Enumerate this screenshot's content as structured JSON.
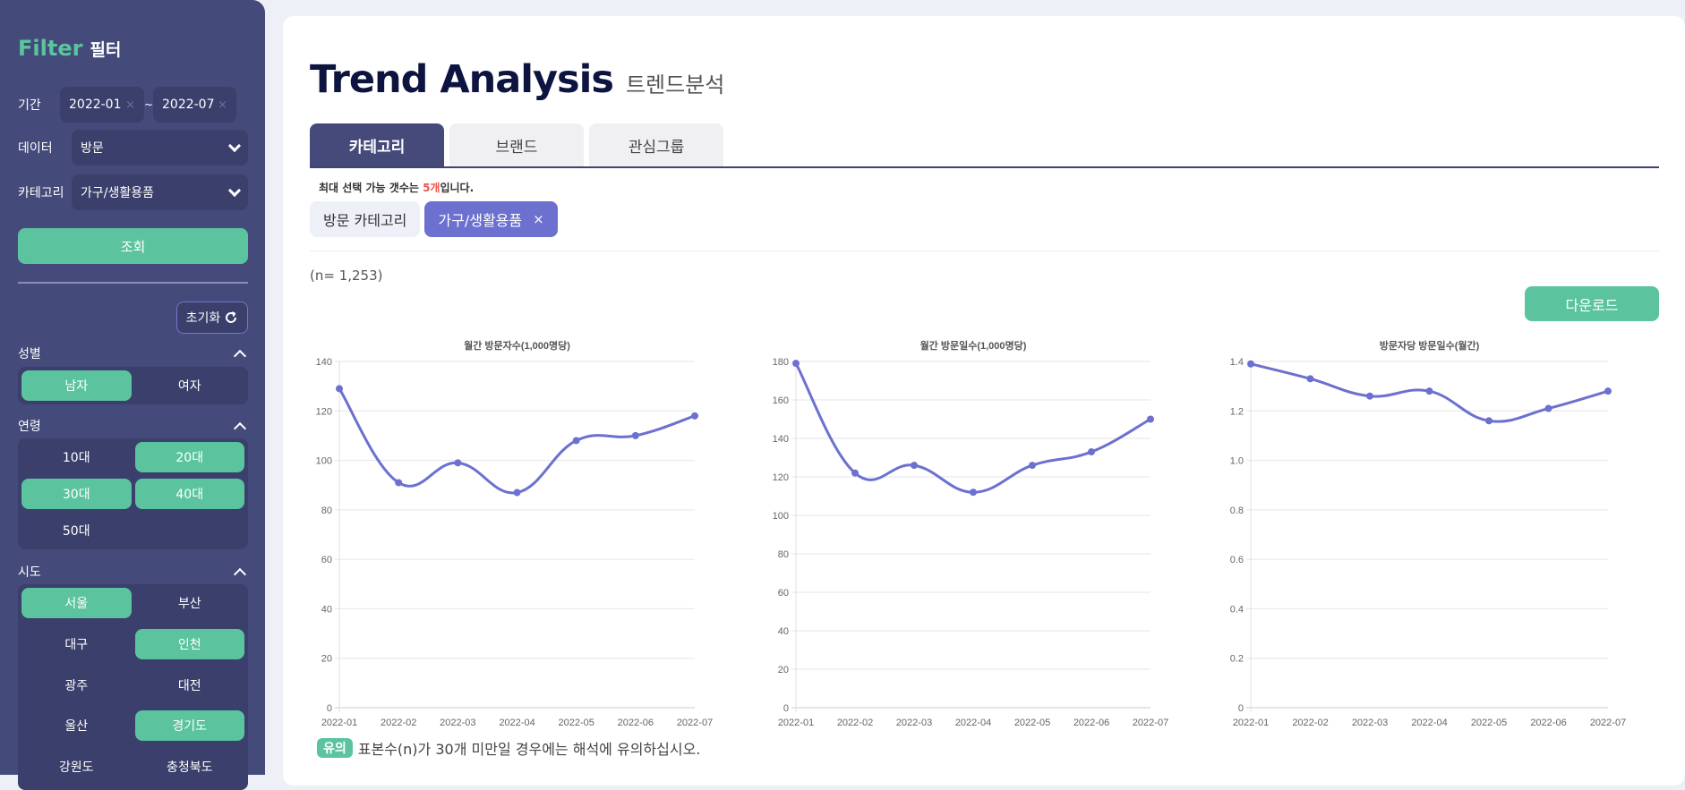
{
  "sidebar": {
    "title_en": "Filter",
    "title_ko": "필터",
    "period": {
      "label": "기간",
      "from": "2022-01",
      "to": "2022-07",
      "clear": "×",
      "sep": "~"
    },
    "data": {
      "label": "데이터",
      "value": "방문"
    },
    "category": {
      "label": "카테고리",
      "value": "가구/생활용품"
    },
    "search_label": "조회",
    "reset_label": "초기화",
    "gender": {
      "label": "성별",
      "options": [
        {
          "label": "남자",
          "selected": true
        },
        {
          "label": "여자",
          "selected": false
        }
      ]
    },
    "age": {
      "label": "연령",
      "options": [
        {
          "label": "10대",
          "selected": false
        },
        {
          "label": "20대",
          "selected": true
        },
        {
          "label": "30대",
          "selected": true
        },
        {
          "label": "40대",
          "selected": true
        },
        {
          "label": "50대",
          "selected": false
        }
      ]
    },
    "region": {
      "label": "시도",
      "options": [
        {
          "label": "서울",
          "selected": true
        },
        {
          "label": "부산",
          "selected": false
        },
        {
          "label": "대구",
          "selected": false
        },
        {
          "label": "인천",
          "selected": true
        },
        {
          "label": "광주",
          "selected": false
        },
        {
          "label": "대전",
          "selected": false
        },
        {
          "label": "울산",
          "selected": false
        },
        {
          "label": "경기도",
          "selected": true
        },
        {
          "label": "강원도",
          "selected": false
        },
        {
          "label": "충청북도",
          "selected": false
        }
      ]
    }
  },
  "main": {
    "title": "Trend Analysis",
    "subtitle": "트렌드분석",
    "tabs": [
      {
        "label": "카테고리",
        "active": true
      },
      {
        "label": "브랜드",
        "active": false
      },
      {
        "label": "관심그룹",
        "active": false
      }
    ],
    "notice_pre": "최대 선택 가능 갯수는 ",
    "notice_count": "5개",
    "notice_post": "입니다.",
    "chips": [
      {
        "label": "방문 카테고리"
      },
      {
        "label": "가구/생활용품",
        "remove": "×"
      }
    ],
    "sample": "(n= 1,253)",
    "download_label": "다운로드",
    "note_badge": "유의",
    "note_text": "표본수(n)가 30개 미만일 경우에는 해석에 유의하십시오."
  },
  "colors": {
    "accent": "#5bc49f",
    "sidebar": "#444a7a",
    "line": "#6c70cf",
    "warn": "#f0544f"
  },
  "chart_data": [
    {
      "type": "line",
      "title": "월간 방문자수(1,000명당)",
      "categories": [
        "2022-01",
        "2022-02",
        "2022-03",
        "2022-04",
        "2022-05",
        "2022-06",
        "2022-07"
      ],
      "values": [
        129,
        91,
        99,
        87,
        108,
        110,
        118
      ],
      "ylim": [
        0,
        140
      ],
      "yticks": [
        "0",
        "20",
        "40",
        "60",
        "80",
        "100",
        "120",
        "140"
      ],
      "grid": true
    },
    {
      "type": "line",
      "title": "월간 방문일수(1,000명당)",
      "categories": [
        "2022-01",
        "2022-02",
        "2022-03",
        "2022-04",
        "2022-05",
        "2022-06",
        "2022-07"
      ],
      "values": [
        179,
        122,
        126,
        112,
        126,
        133,
        150
      ],
      "ylim": [
        0,
        180
      ],
      "yticks": [
        "0",
        "20",
        "40",
        "60",
        "80",
        "100",
        "120",
        "140",
        "160",
        "180"
      ],
      "grid": true
    },
    {
      "type": "line",
      "title": "방문자당 방문일수(월간)",
      "categories": [
        "2022-01",
        "2022-02",
        "2022-03",
        "2022-04",
        "2022-05",
        "2022-06",
        "2022-07"
      ],
      "values": [
        1.39,
        1.33,
        1.26,
        1.28,
        1.16,
        1.21,
        1.28
      ],
      "ylim": [
        0,
        1.4
      ],
      "yticks": [
        "0",
        "0.2",
        "0.4",
        "0.6",
        "0.8",
        "1.0",
        "1.2",
        "1.4"
      ],
      "grid": true
    }
  ]
}
